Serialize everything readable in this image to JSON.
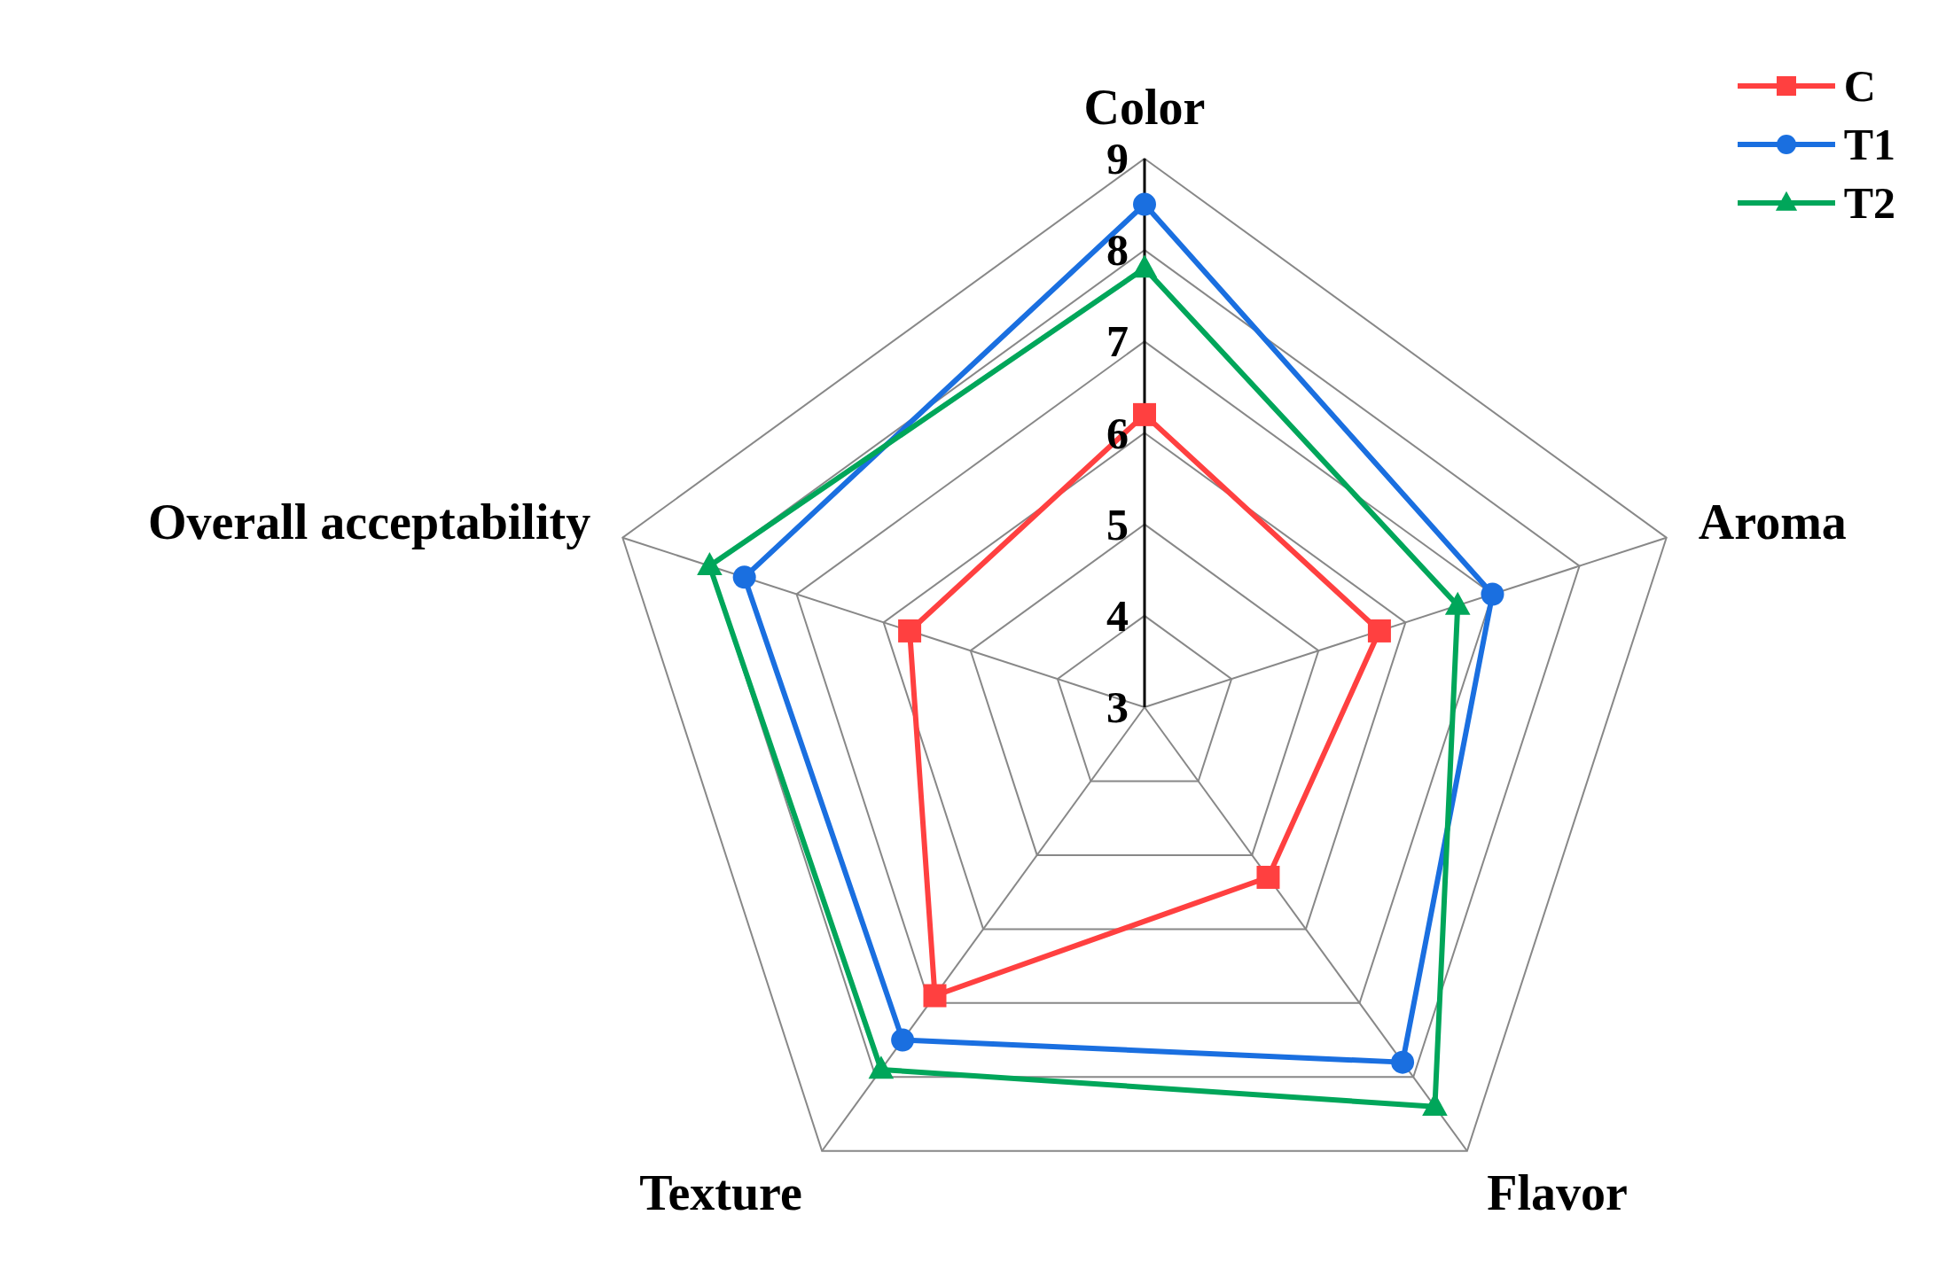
{
  "chart_data": {
    "type": "radar",
    "categories": [
      "Color",
      "Aroma",
      "Flavor",
      "Texture",
      "Overall acceptability"
    ],
    "series": [
      {
        "name": "C",
        "color": "#ff4040",
        "marker": "square",
        "values": [
          6.2,
          5.7,
          5.3,
          6.9,
          5.7
        ]
      },
      {
        "name": "T1",
        "color": "#1a6fe0",
        "marker": "circle",
        "values": [
          8.5,
          7.0,
          7.8,
          7.5,
          7.6
        ]
      },
      {
        "name": "T2",
        "color": "#00a65a",
        "marker": "triangle",
        "values": [
          7.8,
          6.6,
          8.4,
          7.9,
          8.0
        ]
      }
    ],
    "ylim": [
      3,
      9
    ],
    "yticks": [
      3,
      4,
      5,
      6,
      7,
      8,
      9
    ],
    "grid": true,
    "legend": "top right"
  }
}
